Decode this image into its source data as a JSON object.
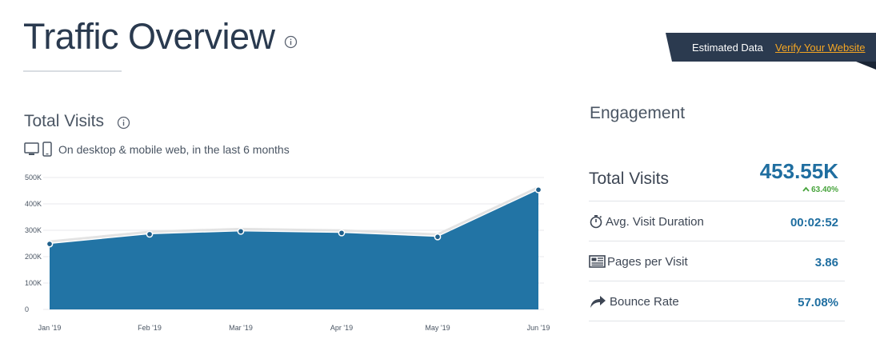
{
  "header": {
    "title": "Traffic Overview",
    "info_icon": "info-icon"
  },
  "banner": {
    "label": "Estimated Data",
    "link": "Verify Your Website",
    "link_color": "#f5a623",
    "background": "#2b3a4f"
  },
  "visits": {
    "title": "Total Visits",
    "subtitle": "On desktop & mobile web, in the last 6 months",
    "icons": [
      "desktop-icon",
      "mobile-icon"
    ]
  },
  "chart_data": {
    "type": "area",
    "categories": [
      "Jan '19",
      "Feb '19",
      "Mar '19",
      "Apr '19",
      "May '19",
      "Jun '19"
    ],
    "values": [
      248000,
      285000,
      296000,
      290000,
      275000,
      453550
    ],
    "ylim": [
      0,
      500000
    ],
    "yticks": [
      "0",
      "100K",
      "200K",
      "300K",
      "400K",
      "500K"
    ],
    "grid": true,
    "fill_color": "#2274a5",
    "line_color": "#e3e3e3",
    "title": "",
    "xlabel": "",
    "ylabel": ""
  },
  "engagement": {
    "title": "Engagement",
    "total_visits": {
      "label": "Total Visits",
      "value": "453.55K",
      "change": "63.40%",
      "change_direction": "up",
      "change_color": "#48a43d"
    },
    "metrics": [
      {
        "label": "Avg. Visit Duration",
        "value": "00:02:52",
        "icon": "stopwatch-icon"
      },
      {
        "label": "Pages per Visit",
        "value": "3.86",
        "icon": "pages-icon"
      },
      {
        "label": "Bounce Rate",
        "value": "57.08%",
        "icon": "bounce-arrow-icon"
      }
    ],
    "value_color": "#1f6ea0"
  }
}
